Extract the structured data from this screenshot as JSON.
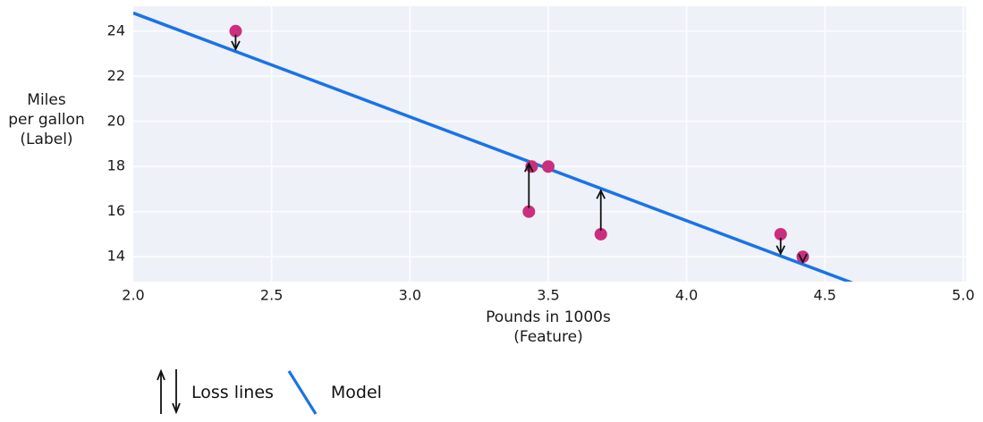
{
  "chart_data": {
    "type": "scatter",
    "title": "",
    "xlabel": "Pounds in 1000s (Feature)",
    "xlabel_lines": [
      "Pounds in 1000s",
      "(Feature)"
    ],
    "ylabel": "Miles per gallon (Label)",
    "ylabel_lines": [
      "Miles",
      "per gallon",
      "(Label)"
    ],
    "xlim": [
      2.0,
      5.01
    ],
    "ylim": [
      12.9,
      25.1
    ],
    "x_ticks": [
      {
        "value": 2.0,
        "label": "2.0"
      },
      {
        "value": 2.5,
        "label": "2.5"
      },
      {
        "value": 3.0,
        "label": "3.0"
      },
      {
        "value": 3.5,
        "label": "3.5"
      },
      {
        "value": 4.0,
        "label": "4.0"
      },
      {
        "value": 4.5,
        "label": "4.5"
      },
      {
        "value": 5.0,
        "label": "5.0"
      }
    ],
    "y_ticks": [
      {
        "value": 14,
        "label": "14"
      },
      {
        "value": 16,
        "label": "16"
      },
      {
        "value": 18,
        "label": "18"
      },
      {
        "value": 20,
        "label": "20"
      },
      {
        "value": 22,
        "label": "22"
      },
      {
        "value": 24,
        "label": "24"
      }
    ],
    "grid": true,
    "points": [
      {
        "x": 3.5,
        "y": 18
      },
      {
        "x": 3.69,
        "y": 15
      },
      {
        "x": 3.44,
        "y": 18
      },
      {
        "x": 3.43,
        "y": 16
      },
      {
        "x": 4.34,
        "y": 15
      },
      {
        "x": 4.42,
        "y": 14
      },
      {
        "x": 2.37,
        "y": 24
      }
    ],
    "model_line": {
      "slope": -4.6,
      "intercept": 34
    },
    "loss_arrows": [
      {
        "x": 2.37,
        "from": 24,
        "to": 23.1,
        "direction": "down"
      },
      {
        "x": 3.43,
        "from": 16,
        "to": 18.22,
        "direction": "up"
      },
      {
        "x": 3.69,
        "from": 15,
        "to": 17.03,
        "direction": "up"
      },
      {
        "x": 4.34,
        "from": 15,
        "to": 14.04,
        "direction": "down"
      },
      {
        "x": 4.42,
        "from": 14,
        "to": 13.67,
        "direction": "down"
      }
    ],
    "legend": {
      "position": "bottom-left",
      "items": [
        {
          "label": "Loss lines",
          "symbol": "up-down-arrows"
        },
        {
          "label": "Model",
          "symbol": "blue-line"
        }
      ]
    },
    "colors": {
      "point": "#cb2e7e",
      "model": "#1a73e8",
      "plot_bg": "#eef1f7",
      "gridline": "#fbfcfe",
      "text": "#1a1a1a",
      "arrow": "#111111"
    }
  }
}
